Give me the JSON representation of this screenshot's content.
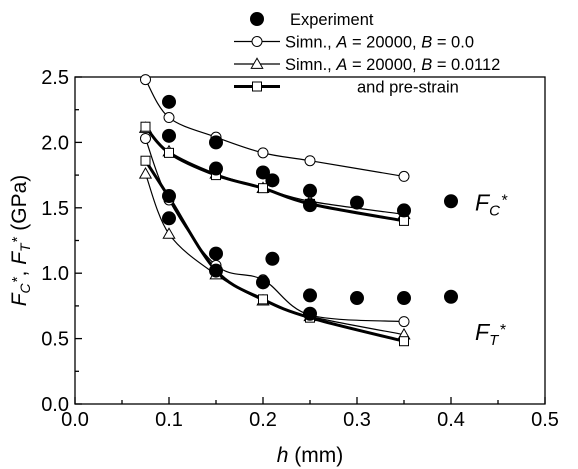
{
  "chart_data": {
    "type": "scatter",
    "xlabel": "mm",
    "xlabel_var": "h",
    "ylabel": "(GPa)",
    "ylabel_vars": [
      "F",
      "C",
      "F",
      "T"
    ],
    "xlim": [
      0.0,
      0.5
    ],
    "ylim": [
      0.0,
      2.5
    ],
    "xticks": [
      "0.0",
      "0.1",
      "0.2",
      "0.3",
      "0.4",
      "0.5"
    ],
    "yticks": [
      "0.0",
      "0.5",
      "1.0",
      "1.5",
      "2.0",
      "2.5"
    ],
    "grid": false,
    "legend_position": "top-right",
    "legend": [
      {
        "key": "exp",
        "marker": "filled-circle",
        "parts": [
          "Experiment"
        ]
      },
      {
        "key": "s1",
        "marker": "open-circle",
        "parts": [
          "Simn., ",
          "A",
          " = 20000, ",
          "B",
          " = 0.0"
        ]
      },
      {
        "key": "s2",
        "marker": "open-triangle",
        "parts": [
          "Simn., ",
          "A",
          " = 20000, ",
          "B",
          " = 0.0112"
        ]
      },
      {
        "key": "s3",
        "marker": "open-square",
        "thick": true,
        "parts": [
          "and pre-strain"
        ]
      }
    ],
    "annotations": [
      {
        "key": "fc",
        "main": "F",
        "sub": "C",
        "sup": "*",
        "y": 1.42
      },
      {
        "key": "ft",
        "main": "F",
        "sub": "T",
        "sup": "*",
        "y": 0.43
      }
    ],
    "series": [
      {
        "name": "Experiment",
        "marker": "filled-circle",
        "points": [
          [
            0.1,
            2.31
          ],
          [
            0.1,
            2.05
          ],
          [
            0.15,
            2.0
          ],
          [
            0.15,
            1.8
          ],
          [
            0.2,
            1.77
          ],
          [
            0.21,
            1.71
          ],
          [
            0.25,
            1.63
          ],
          [
            0.25,
            1.52
          ],
          [
            0.3,
            1.54
          ],
          [
            0.35,
            1.48
          ],
          [
            0.4,
            1.55
          ],
          [
            0.1,
            1.59
          ],
          [
            0.1,
            1.42
          ],
          [
            0.15,
            1.15
          ],
          [
            0.15,
            1.02
          ],
          [
            0.2,
            0.93
          ],
          [
            0.21,
            1.11
          ],
          [
            0.25,
            0.83
          ],
          [
            0.25,
            0.69
          ],
          [
            0.3,
            0.81
          ],
          [
            0.35,
            0.81
          ],
          [
            0.4,
            0.82
          ]
        ]
      },
      {
        "name": "Simn., A = 20000, B = 0.0",
        "marker": "open-circle",
        "thick": false,
        "curves": [
          [
            [
              0.075,
              2.48
            ],
            [
              0.1,
              2.19
            ],
            [
              0.15,
              2.04
            ],
            [
              0.2,
              1.92
            ],
            [
              0.25,
              1.86
            ],
            [
              0.35,
              1.74
            ]
          ],
          [
            [
              0.075,
              2.03
            ],
            [
              0.1,
              1.56
            ],
            [
              0.15,
              1.06
            ],
            [
              0.2,
              0.95
            ],
            [
              0.25,
              0.68
            ],
            [
              0.35,
              0.63
            ]
          ]
        ]
      },
      {
        "name": "Simn., A = 20000, B = 0.0112",
        "marker": "open-triangle",
        "thick": false,
        "curves": [
          [
            [
              0.075,
              2.11
            ],
            [
              0.1,
              1.93
            ],
            [
              0.15,
              1.76
            ],
            [
              0.2,
              1.65
            ],
            [
              0.25,
              1.55
            ],
            [
              0.35,
              1.45
            ]
          ],
          [
            [
              0.075,
              1.76
            ],
            [
              0.1,
              1.3
            ],
            [
              0.15,
              0.99
            ],
            [
              0.2,
              0.79
            ],
            [
              0.25,
              0.67
            ],
            [
              0.35,
              0.53
            ]
          ]
        ]
      },
      {
        "name": "and pre-strain",
        "marker": "open-square",
        "thick": true,
        "curves": [
          [
            [
              0.075,
              2.12
            ],
            [
              0.1,
              1.92
            ],
            [
              0.15,
              1.75
            ],
            [
              0.2,
              1.65
            ],
            [
              0.25,
              1.53
            ],
            [
              0.35,
              1.4
            ]
          ],
          [
            [
              0.075,
              1.86
            ],
            [
              0.1,
              1.58
            ],
            [
              0.15,
              1.02
            ],
            [
              0.2,
              0.8
            ],
            [
              0.25,
              0.66
            ],
            [
              0.35,
              0.48
            ]
          ]
        ]
      }
    ]
  }
}
